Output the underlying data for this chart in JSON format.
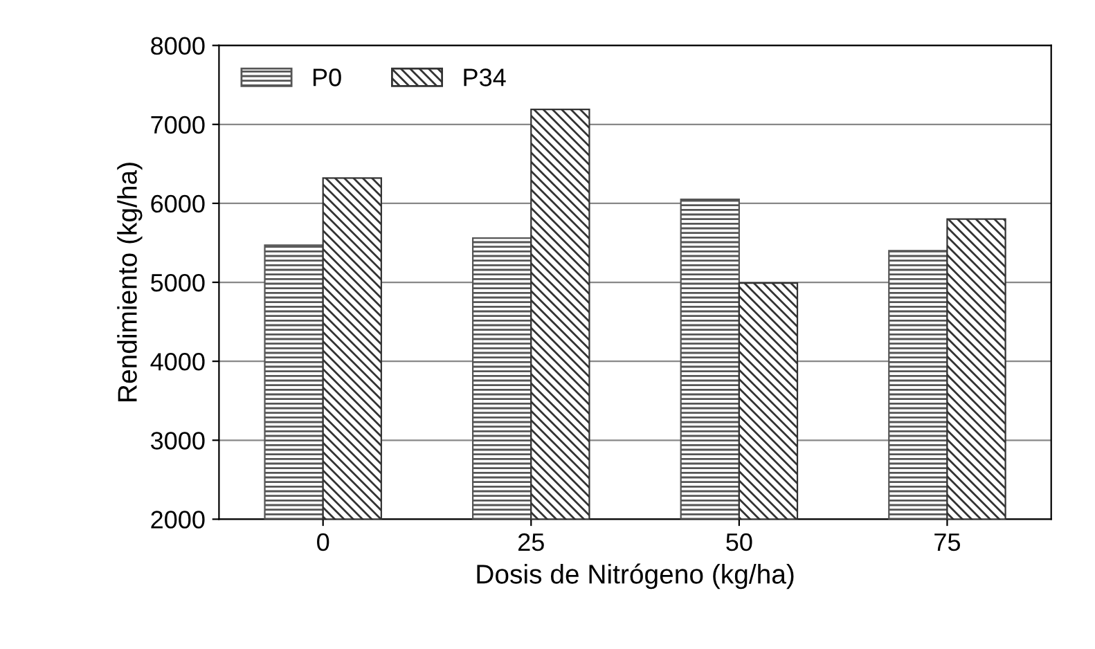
{
  "chart_data": {
    "type": "bar",
    "xlabel": "Dosis de Nitrógeno (kg/ha)",
    "ylabel": "Rendimiento (kg/ha)",
    "categories": [
      "0",
      "25",
      "50",
      "75"
    ],
    "series": [
      {
        "name": "P0",
        "color": "#555555",
        "values": [
          5470,
          5560,
          6050,
          5400
        ]
      },
      {
        "name": "P34",
        "color": "#333333",
        "values": [
          6320,
          7190,
          4990,
          5800
        ]
      }
    ],
    "ylim": [
      2000,
      8000
    ],
    "yticks": [
      2000,
      3000,
      4000,
      5000,
      6000,
      7000,
      8000
    ],
    "grid": "y",
    "legend": "top left"
  }
}
